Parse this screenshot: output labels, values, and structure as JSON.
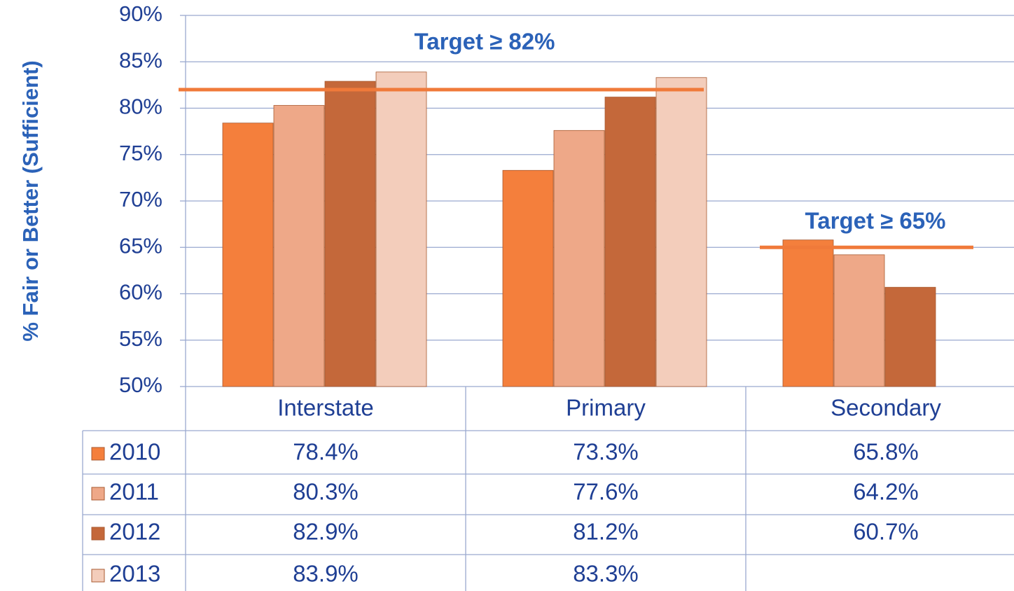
{
  "chart_data": {
    "type": "bar",
    "ylabel": "% Fair or Better (Sufficient)",
    "categories": [
      "Interstate",
      "Primary",
      "Secondary"
    ],
    "series": [
      {
        "name": "2010",
        "color": "#f47f3c",
        "values": [
          78.4,
          73.3,
          65.8
        ],
        "value_labels": [
          "78.4%",
          "73.3%",
          "65.8%"
        ]
      },
      {
        "name": "2011",
        "color": "#eea888",
        "values": [
          80.3,
          77.6,
          64.2
        ],
        "value_labels": [
          "80.3%",
          "77.6%",
          "64.2%"
        ]
      },
      {
        "name": "2012",
        "color": "#c4683a",
        "values": [
          82.9,
          81.2,
          60.7
        ],
        "value_labels": [
          "82.9%",
          "81.2%",
          "60.7%"
        ]
      },
      {
        "name": "2013",
        "color": "#f3cdbb",
        "values": [
          83.9,
          83.3,
          null
        ],
        "value_labels": [
          "83.9%",
          "83.3%",
          null
        ]
      }
    ],
    "ylim": [
      50,
      90
    ],
    "yticks": [
      {
        "value": 50,
        "label": "50%"
      },
      {
        "value": 55,
        "label": "55%"
      },
      {
        "value": 60,
        "label": "60%"
      },
      {
        "value": 65,
        "label": "65%"
      },
      {
        "value": 70,
        "label": "70%"
      },
      {
        "value": 75,
        "label": "75%"
      },
      {
        "value": 80,
        "label": "80%"
      },
      {
        "value": 85,
        "label": "85%"
      },
      {
        "value": 90,
        "label": "90%"
      }
    ],
    "grid": true,
    "annotations": [
      {
        "text": "Target ≥ 82%",
        "value": 82,
        "color": "#f07a3a"
      },
      {
        "text": "Target ≥ 65%",
        "value": 65,
        "color": "#f07a3a"
      }
    ]
  }
}
